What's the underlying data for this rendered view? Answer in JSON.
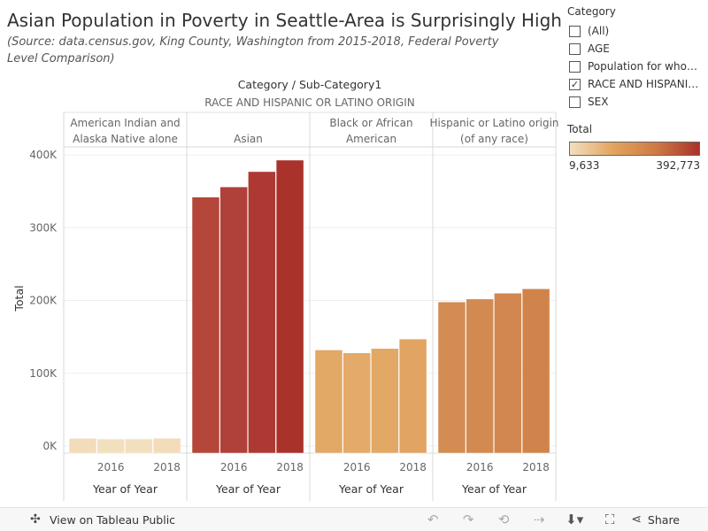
{
  "title": "Asian Population in Poverty in Seattle-Area is Surprisingly High",
  "subtitle": "(Source: data.census.gov, King County, Washington from 2015-2018, Federal Poverty Level Comparison)",
  "legend": {
    "category_title": "Category",
    "category_items": [
      {
        "label": "(All)",
        "checked": false
      },
      {
        "label": "AGE",
        "checked": false
      },
      {
        "label": "Population for whom ...",
        "checked": false
      },
      {
        "label": "RACE AND HISPANIC ...",
        "checked": true
      },
      {
        "label": "SEX",
        "checked": false
      }
    ],
    "total_title": "Total",
    "min_label": "9,633",
    "max_label": "392,773",
    "gradient_colors": [
      "#f2dfbe",
      "#e2a45e",
      "#cf7a44",
      "#a9322b"
    ]
  },
  "chart_data": {
    "type": "bar",
    "column_header": "Category / Sub-Category1",
    "group_header": "RACE AND HISPANIC OR LATINO ORIGIN",
    "ylabel": "Total",
    "xlabel": "Year of Year",
    "ylim": [
      0,
      410000
    ],
    "yticks": [
      0,
      100000,
      200000,
      300000,
      400000
    ],
    "ytick_labels": [
      "0K",
      "100K",
      "200K",
      "300K",
      "400K"
    ],
    "x": [
      2015,
      2016,
      2017,
      2018
    ],
    "xtick_labels": [
      "2016",
      "2018"
    ],
    "grid": true,
    "panels": [
      {
        "label": "American Indian and Alaska Native alone",
        "values": [
          10500,
          9633,
          9700,
          10800
        ],
        "colors": [
          "#f2dcba",
          "#f2dfbe",
          "#f2dfbe",
          "#f2dcba"
        ]
      },
      {
        "label": "Asian",
        "values": [
          342000,
          356000,
          377000,
          392773
        ],
        "colors": [
          "#b4473a",
          "#b0403a",
          "#ac3a33",
          "#a9322b"
        ]
      },
      {
        "label": "Black or African American",
        "values": [
          132000,
          128000,
          134000,
          147000
        ],
        "colors": [
          "#e2a866",
          "#e3aa6a",
          "#e2a866",
          "#e1a462"
        ]
      },
      {
        "label": "Hispanic or Latino origin (of any race)",
        "values": [
          198000,
          202000,
          210000,
          216000
        ],
        "colors": [
          "#d38c52",
          "#d28a50",
          "#d1874f",
          "#d0844c"
        ]
      }
    ]
  },
  "footer": {
    "view_label": "View on Tableau Public",
    "share_label": "Share"
  }
}
